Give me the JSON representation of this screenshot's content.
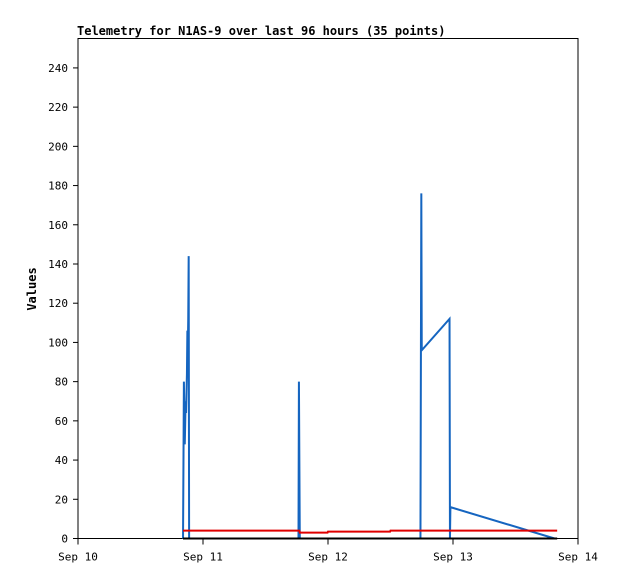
{
  "chart_data": {
    "type": "line",
    "title": "Telemetry for N1AS-9 over last 96 hours (35 points)",
    "ylabel": "Values",
    "xlabel": "",
    "xlim": [
      "2024-09-10T00:00",
      "2024-09-14T00:00"
    ],
    "ylim": [
      0,
      255
    ],
    "x_ticks": [
      {
        "at": "2024-09-10T00:00",
        "label": "Sep 10"
      },
      {
        "at": "2024-09-11T00:00",
        "label": "Sep 11"
      },
      {
        "at": "2024-09-12T00:00",
        "label": "Sep 12"
      },
      {
        "at": "2024-09-13T00:00",
        "label": "Sep 13"
      },
      {
        "at": "2024-09-14T00:00",
        "label": "Sep 14"
      }
    ],
    "y_ticks": [
      0,
      20,
      40,
      60,
      80,
      100,
      120,
      140,
      160,
      180,
      200,
      220,
      240
    ],
    "grid": false,
    "series": [
      {
        "color": "#1565c0",
        "points": [
          [
            "2024-09-10T20:10",
            0
          ],
          [
            "2024-09-10T20:15",
            40
          ],
          [
            "2024-09-10T20:20",
            80
          ],
          [
            "2024-09-10T20:30",
            48
          ],
          [
            "2024-09-10T20:40",
            70
          ],
          [
            "2024-09-10T20:45",
            64
          ],
          [
            "2024-09-10T20:55",
            84
          ],
          [
            "2024-09-10T21:00",
            106
          ],
          [
            "2024-09-10T21:05",
            96
          ],
          [
            "2024-09-10T21:10",
            112
          ],
          [
            "2024-09-10T21:15",
            144
          ],
          [
            "2024-09-10T21:20",
            0
          ],
          [
            "2024-09-11T18:20",
            0
          ],
          [
            "2024-09-11T18:25",
            80
          ],
          [
            "2024-09-11T18:30",
            40
          ],
          [
            "2024-09-11T18:35",
            0
          ],
          [
            "2024-09-12T17:45",
            0
          ],
          [
            "2024-09-12T17:50",
            88
          ],
          [
            "2024-09-12T17:55",
            176
          ],
          [
            "2024-09-12T18:00",
            96
          ],
          [
            "2024-09-12T23:20",
            112
          ],
          [
            "2024-09-12T23:25",
            0
          ],
          [
            "2024-09-12T23:30",
            16
          ],
          [
            "2024-09-13T19:30",
            0
          ]
        ]
      },
      {
        "color": "#e00000",
        "points": [
          [
            "2024-09-10T20:10",
            4
          ],
          [
            "2024-09-11T18:30",
            4
          ],
          [
            "2024-09-11T18:35",
            3
          ],
          [
            "2024-09-11T23:55",
            3
          ],
          [
            "2024-09-12T00:00",
            3.5
          ],
          [
            "2024-09-12T11:55",
            3.5
          ],
          [
            "2024-09-12T12:00",
            4
          ],
          [
            "2024-09-13T20:00",
            4
          ]
        ]
      },
      {
        "color": "#000000",
        "points": [
          [
            "2024-09-10T20:10",
            0
          ],
          [
            "2024-09-13T20:00",
            0
          ]
        ]
      }
    ]
  }
}
